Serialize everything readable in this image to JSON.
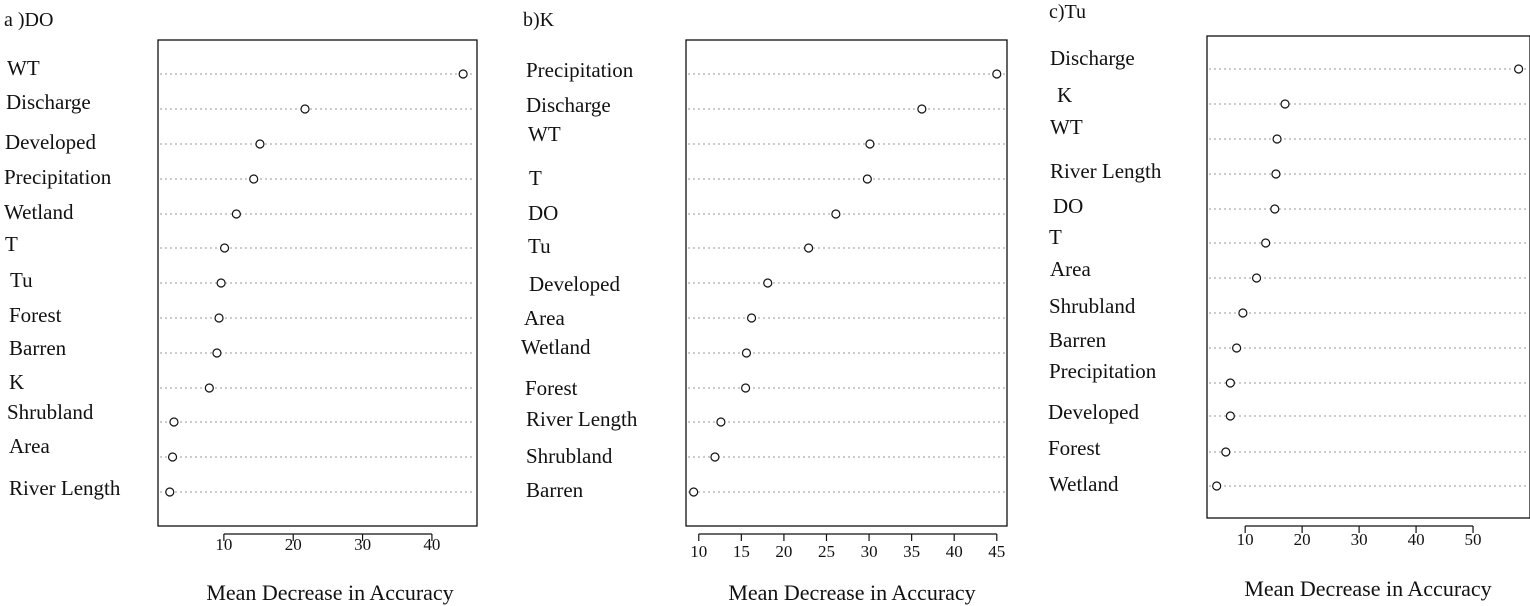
{
  "figure": {
    "colors": {
      "ink": "#111111",
      "guide": "#9a9a9a",
      "point_fill": "#ffffff"
    }
  },
  "chart_data": [
    {
      "type": "scatter",
      "panel_title": "a )DO",
      "xlabel": "Mean Decrease in Accuracy",
      "xlim": [
        0.5,
        46.5
      ],
      "xticks": [
        "10",
        "20",
        "30",
        "40"
      ],
      "xtick_values": [
        10,
        20,
        30,
        40
      ],
      "categories": [
        "WT",
        "Discharge",
        "Developed",
        "Precipitation",
        "Wetland",
        "T",
        "Tu",
        "Forest",
        "Barren",
        "K",
        "Shrubland",
        "Area",
        "River Length"
      ],
      "values": [
        44.5,
        21.7,
        15.2,
        14.3,
        11.8,
        10.1,
        9.6,
        9.3,
        9.0,
        7.9,
        2.8,
        2.6,
        2.2
      ],
      "grid": "dotted horizontal guides"
    },
    {
      "type": "scatter",
      "panel_title": "b)K",
      "xlabel": "Mean Decrease in Accuracy",
      "xlim": [
        8.5,
        46.2
      ],
      "xticks": [
        "10",
        "15",
        "20",
        "25",
        "30",
        "35",
        "40",
        "45"
      ],
      "xtick_values": [
        10,
        15,
        20,
        25,
        30,
        35,
        40,
        45
      ],
      "categories": [
        "Precipitation",
        "Discharge",
        "WT",
        "T",
        "DO",
        "Tu",
        "Developed",
        "Area",
        "Wetland",
        "Forest",
        "River Length",
        "Shrubland",
        "Barren"
      ],
      "values": [
        45.0,
        36.2,
        30.1,
        29.8,
        26.1,
        22.9,
        18.1,
        16.2,
        15.6,
        15.5,
        12.6,
        11.9,
        9.4
      ],
      "grid": "dotted horizontal guides"
    },
    {
      "type": "scatter",
      "panel_title": "c)Tu",
      "xlabel": "Mean Decrease in Accuracy",
      "xlim": [
        3.3,
        60.0
      ],
      "xticks": [
        "10",
        "20",
        "30",
        "40",
        "50"
      ],
      "xtick_values": [
        10,
        20,
        30,
        40,
        50
      ],
      "categories": [
        "Discharge",
        "K",
        "WT",
        "River Length",
        "DO",
        "T",
        "Area",
        "Shrubland",
        "Barren",
        "Precipitation",
        "Developed",
        "Forest",
        "Wetland"
      ],
      "values": [
        58.0,
        17.0,
        15.6,
        15.4,
        15.2,
        13.6,
        12.0,
        9.6,
        8.5,
        7.4,
        7.4,
        6.6,
        5.0
      ],
      "grid": "dotted horizontal guides"
    }
  ]
}
